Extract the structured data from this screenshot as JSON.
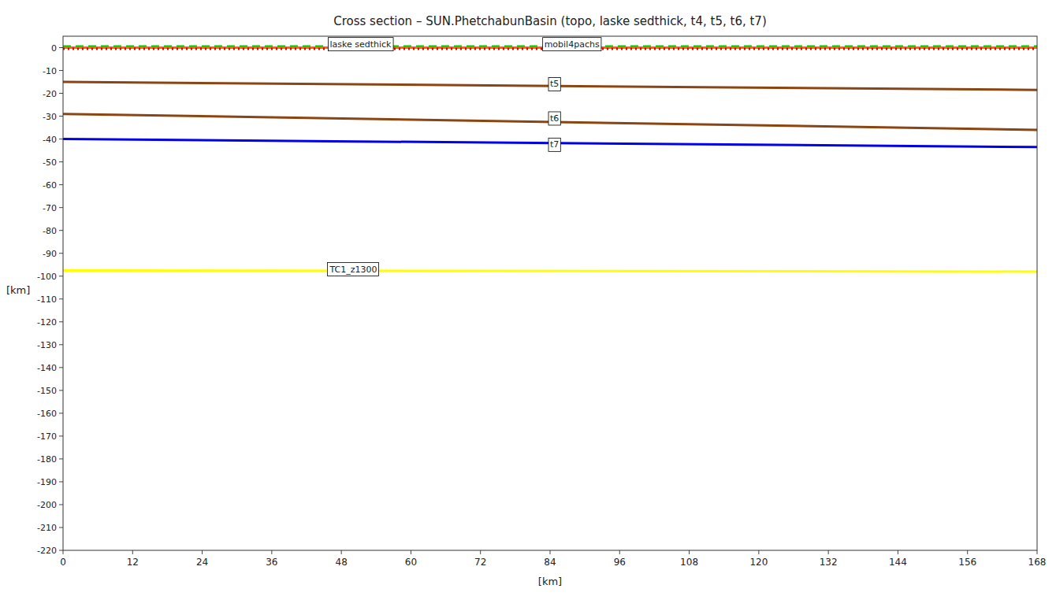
{
  "chart_data": {
    "type": "line",
    "title": "Cross section – SUN.PhetchabunBasin (topo, laske sedthick, t4, t5, t6, t7)",
    "x_label": "[km]",
    "y_label": "[km]",
    "xlim": [
      0,
      168
    ],
    "ylim": [
      -220,
      5
    ],
    "xticks": [
      0,
      12,
      24,
      36,
      48,
      60,
      72,
      84,
      96,
      108,
      120,
      132,
      144,
      156,
      168
    ],
    "yticks": [
      0,
      -10,
      -20,
      -30,
      -40,
      -50,
      -60,
      -70,
      -80,
      -90,
      -100,
      -110,
      -120,
      -130,
      -140,
      -150,
      -160,
      -170,
      -180,
      -190,
      -200,
      -210,
      -220
    ],
    "grid": false,
    "series": [
      {
        "color": "#00cc00",
        "line_style": "dashed",
        "x": [
          0,
          168
        ],
        "values": [
          0.5,
          0.5
        ]
      },
      {
        "color": "#ff6600",
        "line_style": "solid",
        "x": [
          0,
          168
        ],
        "values": [
          0.0,
          0.0
        ]
      },
      {
        "color": "#dd0000",
        "line_style": "dotted",
        "x": [
          0,
          168
        ],
        "values": [
          -0.5,
          -0.5
        ]
      },
      {
        "color": "#8B4513",
        "line_style": "solid",
        "x": [
          0,
          168
        ],
        "values": [
          -15.0,
          -18.5
        ]
      },
      {
        "color": "#8B4513",
        "line_style": "solid",
        "x": [
          0,
          168
        ],
        "values": [
          -29.0,
          -36.0
        ]
      },
      {
        "color": "#0000ee",
        "line_style": "solid",
        "x": [
          0,
          168
        ],
        "values": [
          -40.0,
          -43.5
        ]
      },
      {
        "color": "#ffff00",
        "line_style": "solid",
        "x": [
          0,
          168
        ],
        "values": [
          -97.5,
          -98.0
        ]
      }
    ],
    "annotations": [
      {
        "text": "laske sedthick",
        "x": 46,
        "y": 1.5
      },
      {
        "text": "mobil4pachs",
        "x": 83,
        "y": 1.5
      },
      {
        "text": "t5",
        "x": 84,
        "y": -16.0
      },
      {
        "text": "t6",
        "x": 84,
        "y": -31.0
      },
      {
        "text": "t7",
        "x": 84,
        "y": -42.5
      },
      {
        "text": "TC1_z1300",
        "x": 46,
        "y": -97.0
      }
    ]
  }
}
